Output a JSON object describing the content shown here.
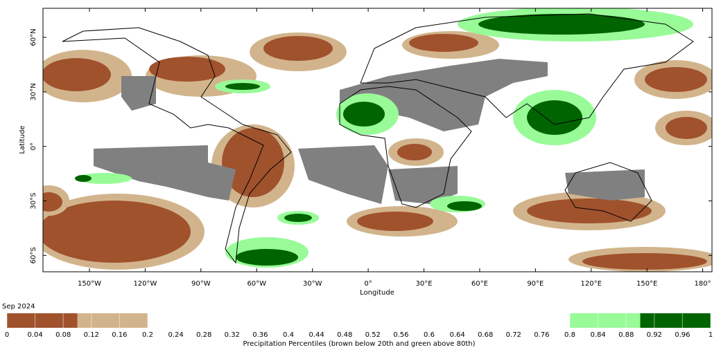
{
  "date": "Sep 2024",
  "x_axis": {
    "label": "Longitude",
    "range": [
      -175,
      185
    ],
    "ticks": [
      {
        "value": -150,
        "label": "150°W"
      },
      {
        "value": -120,
        "label": "120°W"
      },
      {
        "value": -90,
        "label": "90°W"
      },
      {
        "value": -60,
        "label": "60°W"
      },
      {
        "value": -30,
        "label": "30°W"
      },
      {
        "value": 0,
        "label": "0°"
      },
      {
        "value": 30,
        "label": "30°E"
      },
      {
        "value": 60,
        "label": "60°E"
      },
      {
        "value": 90,
        "label": "90°E"
      },
      {
        "value": 120,
        "label": "120°E"
      },
      {
        "value": 150,
        "label": "150°E"
      },
      {
        "value": 180,
        "label": "180°"
      }
    ]
  },
  "y_axis": {
    "label": "Latitude",
    "range": [
      -69,
      76
    ],
    "ticks": [
      {
        "value": 60,
        "label": "60°N"
      },
      {
        "value": 30,
        "label": "30°N"
      },
      {
        "value": 0,
        "label": "0°"
      },
      {
        "value": -30,
        "label": "30°S"
      },
      {
        "value": -60,
        "label": "60°S"
      }
    ]
  },
  "colorbar": {
    "label": "Precipitation Percentiles (brown below 20th and green above 80th)",
    "range": [
      0,
      1
    ],
    "ticks": [
      0,
      0.04,
      0.08,
      0.12,
      0.16,
      0.2,
      0.24,
      0.28,
      0.32,
      0.36,
      0.4,
      0.44,
      0.48,
      0.52,
      0.56,
      0.6,
      0.64,
      0.68,
      0.72,
      0.76,
      0.8,
      0.84,
      0.88,
      0.92,
      0.96,
      1
    ],
    "bands": [
      {
        "from": 0,
        "to": 0.1,
        "color": "#a0522d"
      },
      {
        "from": 0.1,
        "to": 0.2,
        "color": "#d2b48c"
      },
      {
        "from": 0.8,
        "to": 0.9,
        "color": "#98fb98"
      },
      {
        "from": 0.9,
        "to": 1,
        "color": "#006400"
      }
    ]
  }
}
